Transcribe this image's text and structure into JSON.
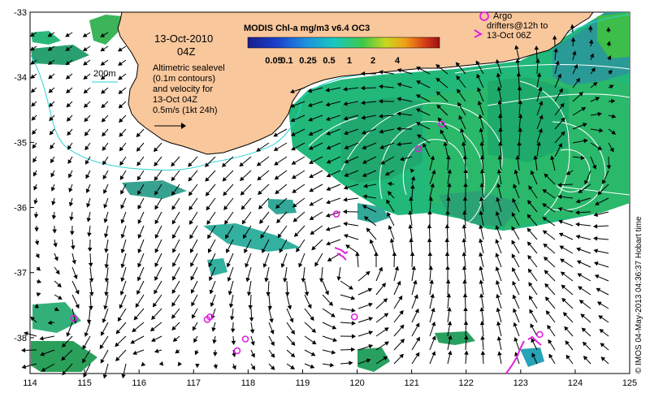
{
  "map": {
    "date_title": "13-Oct-2010",
    "time_title": "04Z",
    "scale_label": "200m",
    "sealevel_lines": [
      "Altimetric sealevel",
      "(0.1m contours)",
      "and velocity for",
      "13-Oct 04Z",
      "0.5m/s (1kt 24h)"
    ],
    "colorbar_title": "MODIS Chl-a mg/m3 v6.4 OC3",
    "colorbar_ticks": [
      "0.05",
      "0.1",
      "0.25",
      "0.5",
      "1",
      "2",
      "4"
    ],
    "argo_legend_line1": "Argo",
    "argo_legend_line2": "drifters@12h to",
    "argo_legend_line3": "13-Oct 06Z",
    "credit": "© IMOS 04-May-2013 04:36:37 Hobart time",
    "colors": {
      "land": "#f9c79c",
      "coast": "#000000",
      "bathymetry": "#26d3d3",
      "argo": "#e020e0",
      "contour": "#ffffff"
    }
  },
  "chart_data": {
    "type": "map",
    "x_ticks": [
      "114",
      "115",
      "116",
      "117",
      "118",
      "119",
      "120",
      "121",
      "122",
      "123",
      "124",
      "125"
    ],
    "y_ticks": [
      "-33",
      "-34",
      "-35",
      "-36",
      "-37",
      "-38"
    ],
    "xlim": [
      114,
      125
    ],
    "ylim": [
      -38.55,
      -33
    ],
    "argo_floats": [
      {
        "lon": 114.8,
        "lat": -37.7
      },
      {
        "lon": 117.25,
        "lat": -37.72
      },
      {
        "lon": 117.3,
        "lat": -37.68
      },
      {
        "lon": 117.8,
        "lat": -38.2
      },
      {
        "lon": 117.95,
        "lat": -38.02
      },
      {
        "lon": 119.62,
        "lat": -36.1
      },
      {
        "lon": 119.95,
        "lat": -37.68
      },
      {
        "lon": 121.12,
        "lat": -35.1
      },
      {
        "lon": 121.55,
        "lat": -34.72
      },
      {
        "lon": 123.35,
        "lat": -37.95
      }
    ]
  }
}
